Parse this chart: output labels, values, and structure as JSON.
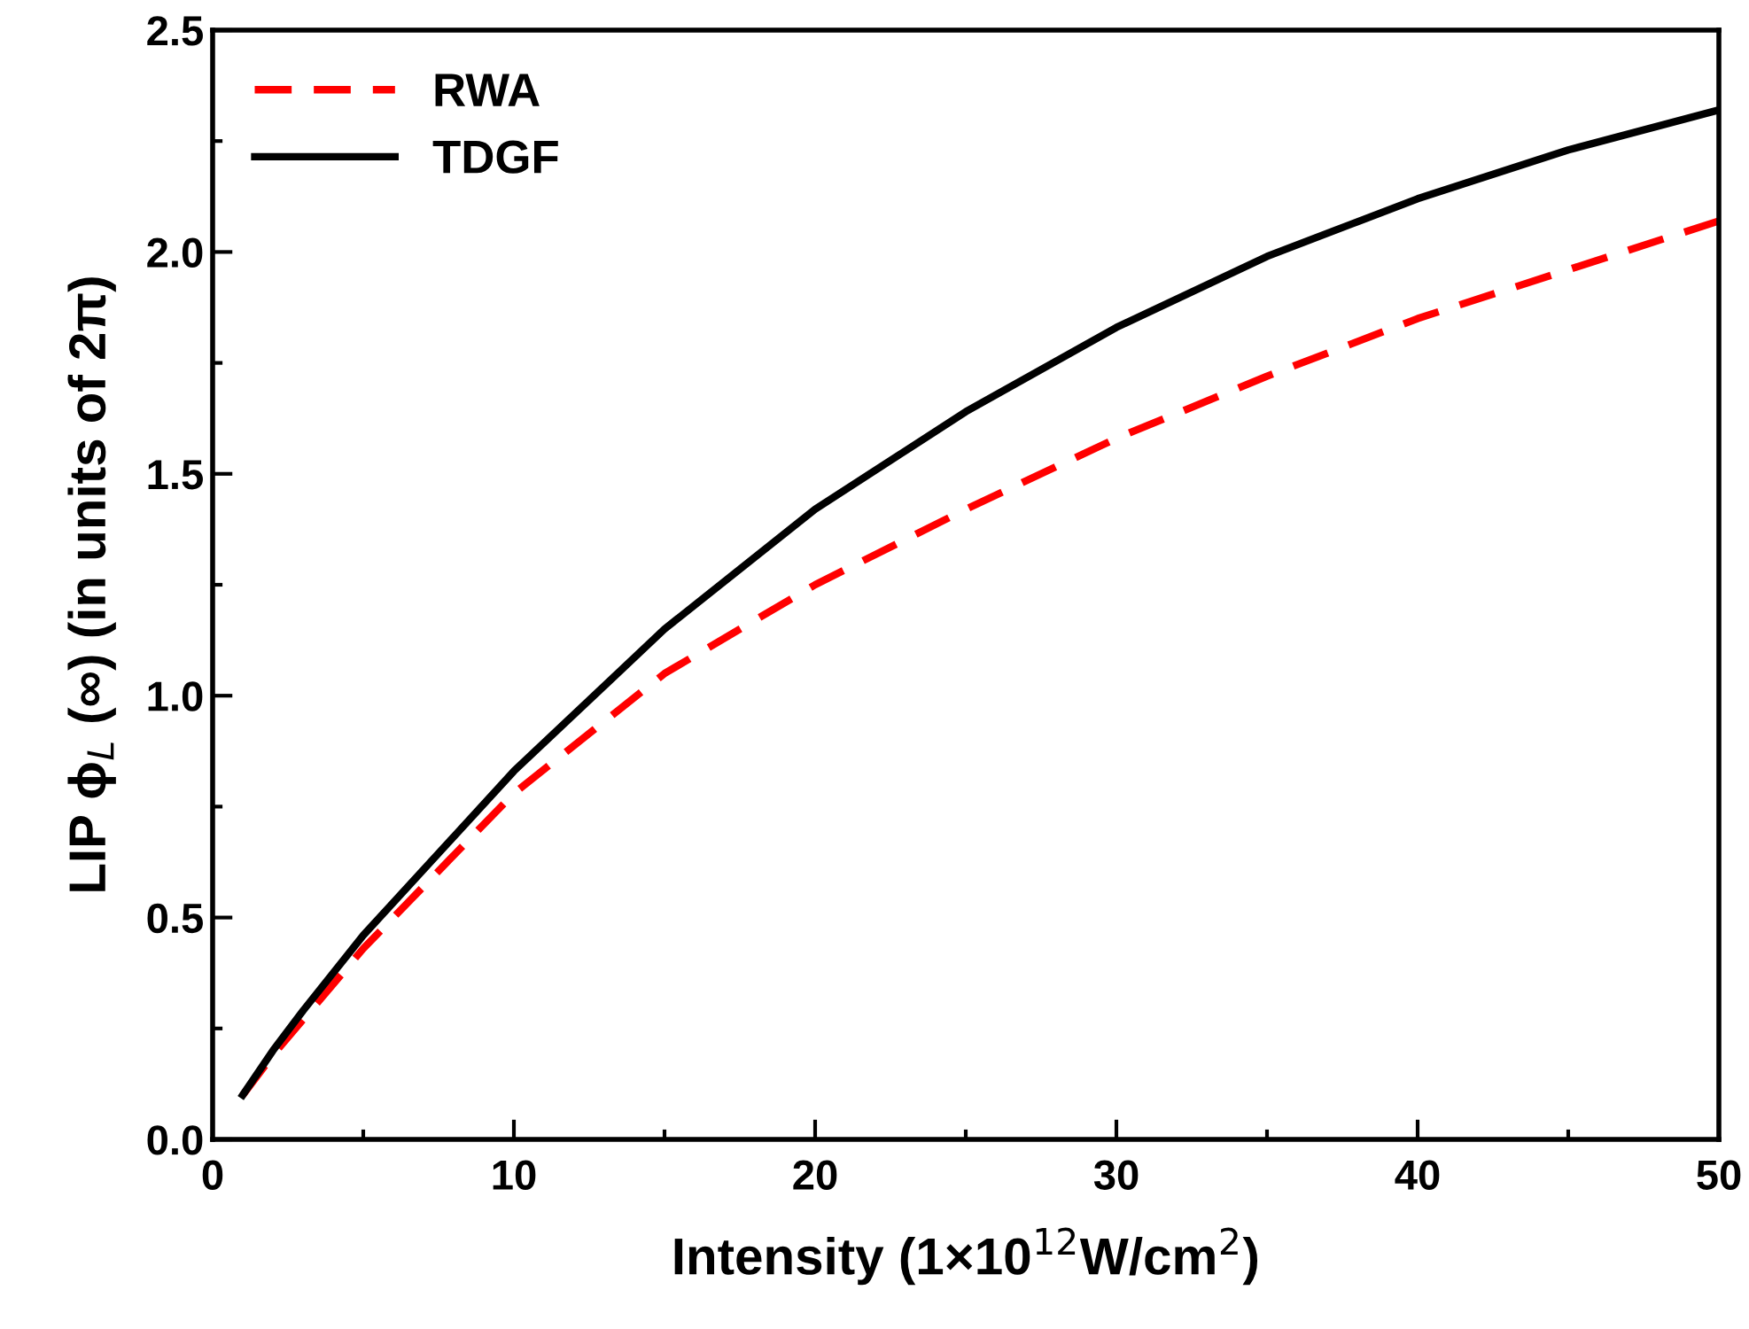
{
  "chart_data": {
    "type": "line",
    "xlabel": "Intensity (1×10$^{12}$W/cm$^{2}$)",
    "ylabel": "LIP ϕ$_{L}$ (∞) (in units of 2π)",
    "xlim": [
      0,
      50
    ],
    "ylim": [
      0,
      2.5
    ],
    "xticks": [
      0,
      10,
      20,
      30,
      40,
      50
    ],
    "yticks": [
      {
        "value": 0,
        "label": "0.0"
      },
      {
        "value": 0.5,
        "label": "0.5"
      },
      {
        "value": 1,
        "label": "1.0"
      },
      {
        "value": 1.5,
        "label": "1.5"
      },
      {
        "value": 2,
        "label": "2.0"
      },
      {
        "value": 2.5,
        "label": "2.5"
      }
    ],
    "x": [
      1,
      2,
      3,
      5,
      10,
      15,
      20,
      25,
      30,
      35,
      40,
      45,
      50
    ],
    "series": [
      {
        "name": "RWA",
        "color": "#ff0000",
        "line_style": "dashed",
        "values": [
          0.1,
          0.19,
          0.27,
          0.43,
          0.78,
          1.05,
          1.25,
          1.42,
          1.58,
          1.72,
          1.85,
          1.96,
          2.07
        ]
      },
      {
        "name": "TDGF",
        "color": "#000000",
        "line_style": "solid",
        "values": [
          0.1,
          0.2,
          0.29,
          0.46,
          0.83,
          1.15,
          1.42,
          1.64,
          1.83,
          1.99,
          2.12,
          2.23,
          2.32
        ]
      }
    ],
    "legend": "top left",
    "grid": false
  }
}
